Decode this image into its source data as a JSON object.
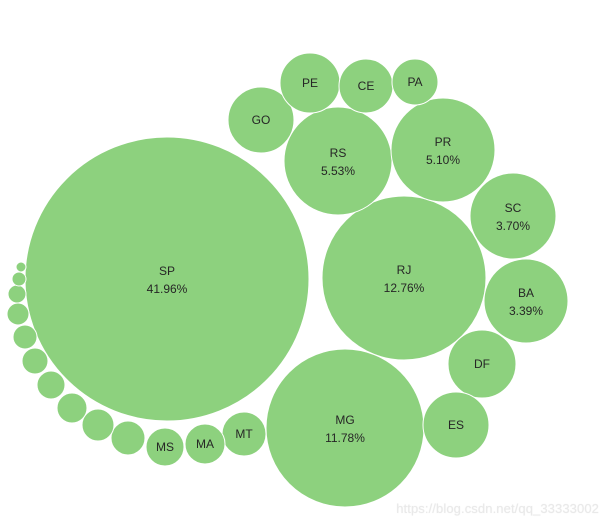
{
  "chart_data": {
    "type": "bubble",
    "title": "",
    "fill_color": "#8dd17e",
    "bubbles": [
      {
        "name": "SP",
        "value": 41.96,
        "label": "41.96%"
      },
      {
        "name": "RJ",
        "value": 12.76,
        "label": "12.76%"
      },
      {
        "name": "MG",
        "value": 11.78,
        "label": "11.78%"
      },
      {
        "name": "RS",
        "value": 5.53,
        "label": "5.53%"
      },
      {
        "name": "PR",
        "value": 5.1,
        "label": "5.10%"
      },
      {
        "name": "SC",
        "value": 3.7,
        "label": "3.70%"
      },
      {
        "name": "BA",
        "value": 3.39,
        "label": "3.39%"
      },
      {
        "name": "DF",
        "value": null,
        "label": ""
      },
      {
        "name": "ES",
        "value": null,
        "label": ""
      },
      {
        "name": "GO",
        "value": null,
        "label": ""
      },
      {
        "name": "PE",
        "value": null,
        "label": ""
      },
      {
        "name": "CE",
        "value": null,
        "label": ""
      },
      {
        "name": "PA",
        "value": null,
        "label": ""
      },
      {
        "name": "MT",
        "value": null,
        "label": ""
      },
      {
        "name": "MA",
        "value": null,
        "label": ""
      },
      {
        "name": "MS",
        "value": null,
        "label": ""
      },
      {
        "name": "",
        "value": null,
        "label": ""
      },
      {
        "name": "",
        "value": null,
        "label": ""
      },
      {
        "name": "",
        "value": null,
        "label": ""
      },
      {
        "name": "",
        "value": null,
        "label": ""
      },
      {
        "name": "",
        "value": null,
        "label": ""
      },
      {
        "name": "",
        "value": null,
        "label": ""
      },
      {
        "name": "",
        "value": null,
        "label": ""
      },
      {
        "name": "",
        "value": null,
        "label": ""
      },
      {
        "name": "",
        "value": null,
        "label": ""
      },
      {
        "name": "",
        "value": null,
        "label": ""
      }
    ]
  },
  "watermark": "https://blog.csdn.net/qq_33333002"
}
